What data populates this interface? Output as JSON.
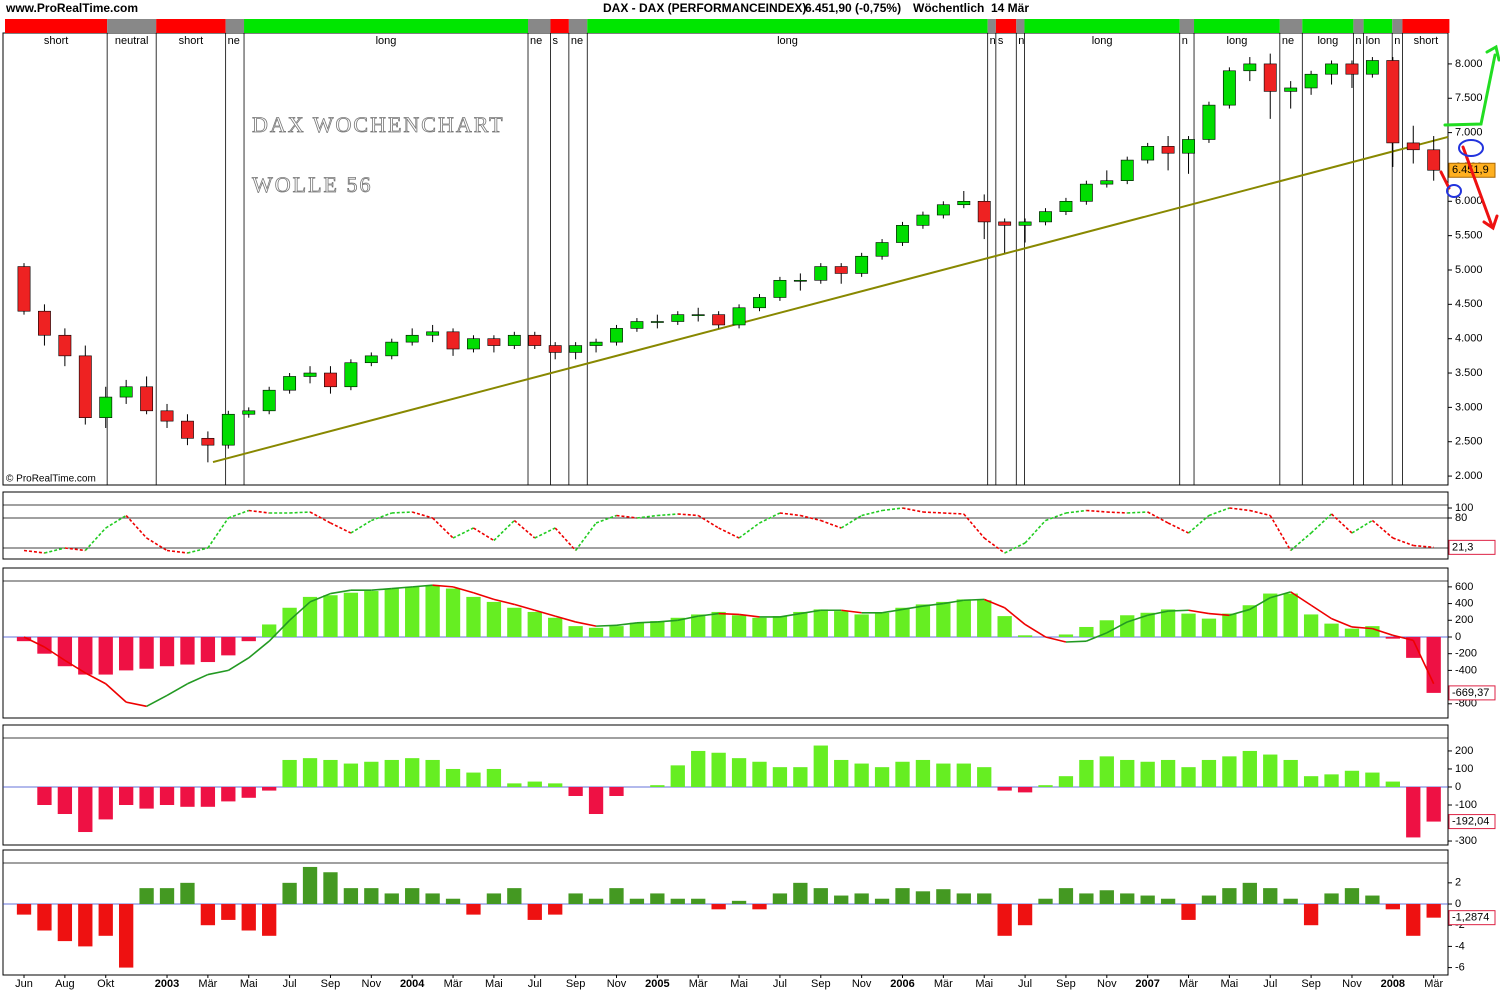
{
  "header": {
    "site": "www.ProRealTime.com",
    "title": "DAX - DAX (PERFORMANCEINDEX)",
    "price": "6.451,90 (-0,75%)",
    "period": "Wöchentlich  14 Mär",
    "copyright": "© ProRealTime.com"
  },
  "chart_data": [
    {
      "type": "candlestick",
      "annotations": [
        "DAX WOCHENCHART",
        "WOLLE 56"
      ],
      "categories": [
        "Jun",
        null,
        "Aug",
        null,
        "Okt",
        null,
        null,
        "2003",
        null,
        "Mär",
        null,
        "Mai",
        null,
        "Jul",
        null,
        "Sep",
        null,
        "Nov",
        null,
        "2004",
        null,
        "Mär",
        null,
        "Mai",
        null,
        "Jul",
        null,
        "Sep",
        null,
        "Nov",
        null,
        "2005",
        null,
        "Mär",
        null,
        "Mai",
        null,
        "Jul",
        null,
        "Sep",
        null,
        "Nov",
        null,
        "2006",
        null,
        "Mär",
        null,
        "Mai",
        null,
        "Jul",
        null,
        "Sep",
        null,
        "Nov",
        null,
        "2007",
        null,
        "Mär",
        null,
        "Mai",
        null,
        "Jul",
        null,
        "Sep",
        null,
        "Nov",
        null,
        "2008",
        null,
        "Mär"
      ],
      "open": [
        5050,
        4400,
        4050,
        3750,
        2850,
        3150,
        3300,
        2950,
        2800,
        2550,
        2450,
        2900,
        2950,
        3250,
        3450,
        3500,
        3300,
        3650,
        3750,
        3950,
        4050,
        4100,
        3850,
        4000,
        3900,
        4050,
        3900,
        3800,
        3900,
        3950,
        4150,
        4250,
        4250,
        4350,
        4350,
        4200,
        4450,
        4600,
        4850,
        4850,
        5050,
        4950,
        5200,
        5400,
        5650,
        5800,
        5950,
        6000,
        5700,
        5650,
        5700,
        5850,
        6000,
        6250,
        6300,
        6600,
        6800,
        6700,
        6900,
        7400,
        7900,
        8000,
        7600,
        7650,
        7850,
        8000,
        7850,
        8050,
        6850,
        6750
      ],
      "high": [
        5100,
        4500,
        4150,
        3900,
        3300,
        3400,
        3450,
        3050,
        2900,
        2650,
        2950,
        3000,
        3300,
        3500,
        3600,
        3600,
        3700,
        3800,
        4000,
        4150,
        4200,
        4150,
        4050,
        4050,
        4100,
        4100,
        3950,
        3950,
        4000,
        4200,
        4300,
        4350,
        4400,
        4450,
        4400,
        4500,
        4650,
        4900,
        4950,
        5100,
        5100,
        5250,
        5450,
        5700,
        5850,
        6000,
        6150,
        6100,
        5750,
        5750,
        5900,
        6050,
        6300,
        6450,
        6650,
        6850,
        6950,
        6950,
        7450,
        7950,
        8100,
        8150,
        7750,
        7900,
        8050,
        8050,
        8100,
        8100,
        7100,
        6950
      ],
      "low": [
        4350,
        3900,
        3600,
        2750,
        2700,
        3050,
        2900,
        2700,
        2450,
        2200,
        2400,
        2850,
        2900,
        3200,
        3350,
        3200,
        3250,
        3600,
        3700,
        3900,
        3950,
        3750,
        3800,
        3800,
        3850,
        3850,
        3700,
        3700,
        3800,
        3900,
        4100,
        4150,
        4200,
        4250,
        4150,
        4150,
        4400,
        4550,
        4700,
        4800,
        4800,
        4900,
        5150,
        5350,
        5600,
        5750,
        5900,
        5450,
        5250,
        5400,
        5650,
        5800,
        5950,
        6200,
        6250,
        6550,
        6450,
        6400,
        6850,
        7350,
        7750,
        7200,
        7350,
        7550,
        7700,
        7650,
        7800,
        6500,
        6550,
        6300
      ],
      "close": [
        4400,
        4050,
        3750,
        2850,
        3150,
        3300,
        2950,
        2800,
        2550,
        2450,
        2900,
        2950,
        3250,
        3450,
        3500,
        3300,
        3650,
        3750,
        3950,
        4050,
        4100,
        3850,
        4000,
        3900,
        4050,
        3900,
        3800,
        3900,
        3950,
        4150,
        4250,
        4250,
        4350,
        4350,
        4200,
        4450,
        4600,
        4850,
        4850,
        5050,
        4950,
        5200,
        5400,
        5650,
        5800,
        5950,
        6000,
        5700,
        5650,
        5700,
        5850,
        6000,
        6250,
        6300,
        6600,
        6800,
        6700,
        6900,
        7400,
        7900,
        8000,
        7600,
        7650,
        7850,
        8000,
        7850,
        8050,
        6850,
        6750,
        6451.9
      ],
      "up_color": "#00dd00",
      "down_color": "#ee2222",
      "ylim": [
        1870,
        8450
      ],
      "yticks": [
        {
          "value": 2000,
          "label": "2.000"
        },
        {
          "value": 2500,
          "label": "2.500"
        },
        {
          "value": 3000,
          "label": "3.000"
        },
        {
          "value": 3500,
          "label": "3.500"
        },
        {
          "value": 4000,
          "label": "4.000"
        },
        {
          "value": 4500,
          "label": "4.500"
        },
        {
          "value": 5000,
          "label": "5.000"
        },
        {
          "value": 5500,
          "label": "5.500"
        },
        {
          "value": 6000,
          "label": "6.000"
        },
        {
          "value": 6500,
          "label": "6.500"
        },
        {
          "value": 7000,
          "label": "7.000"
        },
        {
          "value": 7500,
          "label": "7.500"
        },
        {
          "value": 8000,
          "label": "8.000"
        }
      ],
      "last_label": "6.451,9",
      "label_box_color": "#ffb020",
      "trendline": {
        "x": [
          9.25,
          69.7
        ],
        "y": [
          2204,
          6937
        ],
        "color": "#888800"
      },
      "regimes": [
        {
          "label": "short",
          "color": "#ff0000",
          "months": 5.0
        },
        {
          "label": "neutral",
          "color": "#888888",
          "months": 2.4
        },
        {
          "label": "short",
          "color": "#ff0000",
          "months": 3.4
        },
        {
          "label": "ne",
          "color": "#888888",
          "months": 0.9
        },
        {
          "label": "long",
          "color": "#00e600",
          "months": 13.9
        },
        {
          "label": "ne",
          "color": "#888888",
          "months": 1.1
        },
        {
          "label": "s",
          "color": "#ff0000",
          "months": 0.9
        },
        {
          "label": "ne",
          "color": "#888888",
          "months": 0.9
        },
        {
          "label": "long",
          "color": "#00e600",
          "months": 19.6
        },
        {
          "label": "n",
          "color": "#888888",
          "months": 0.4
        },
        {
          "label": "s",
          "color": "#ff0000",
          "months": 1.0
        },
        {
          "label": "n",
          "color": "#888888",
          "months": 0.4
        },
        {
          "label": "long",
          "color": "#00e600",
          "months": 7.6
        },
        {
          "label": "n",
          "color": "#888888",
          "months": 0.7
        },
        {
          "label": "long",
          "color": "#00e600",
          "months": 4.2
        },
        {
          "label": "ne",
          "color": "#888888",
          "months": 1.1
        },
        {
          "label": "long",
          "color": "#00e600",
          "months": 2.5
        },
        {
          "label": "n",
          "color": "#888888",
          "months": 0.5
        },
        {
          "label": "lon",
          "color": "#00e600",
          "months": 1.4
        },
        {
          "label": "n",
          "color": "#888888",
          "months": 0.5
        },
        {
          "label": "short",
          "color": "#ff0000",
          "months": 2.3
        }
      ]
    },
    {
      "type": "line",
      "values": [
        15,
        10,
        20,
        15,
        60,
        85,
        40,
        15,
        10,
        20,
        80,
        95,
        90,
        90,
        92,
        70,
        50,
        75,
        90,
        92,
        80,
        40,
        60,
        35,
        75,
        40,
        60,
        15,
        70,
        85,
        80,
        85,
        88,
        85,
        60,
        40,
        70,
        90,
        85,
        75,
        60,
        85,
        95,
        100,
        92,
        90,
        88,
        40,
        10,
        30,
        75,
        90,
        95,
        92,
        90,
        92,
        70,
        50,
        85,
        100,
        95,
        85,
        15,
        50,
        88,
        50,
        75,
        40,
        25,
        21.3
      ],
      "up_color": "#22cc22",
      "down_color": "#ee0000",
      "levels": [
        80,
        20
      ],
      "ylim": [
        -2,
        132
      ],
      "yticks": [
        100,
        80
      ],
      "last_label": "21,3",
      "label_box_color": "#ffffff"
    },
    {
      "type": "bar",
      "values": [
        -50,
        -200,
        -350,
        -450,
        -450,
        -400,
        -380,
        -350,
        -330,
        -300,
        -220,
        -50,
        150,
        350,
        480,
        500,
        530,
        550,
        580,
        600,
        620,
        580,
        480,
        420,
        350,
        300,
        230,
        130,
        110,
        130,
        170,
        190,
        230,
        270,
        300,
        260,
        230,
        250,
        300,
        330,
        310,
        270,
        290,
        350,
        390,
        420,
        450,
        440,
        250,
        20,
        0,
        30,
        120,
        200,
        260,
        290,
        330,
        280,
        220,
        280,
        380,
        520,
        520,
        270,
        160,
        100,
        130,
        -20,
        -250,
        -669.37
      ],
      "positive_color": "#66ee22",
      "negative_color": "#ee1144",
      "line": {
        "values": [
          0,
          -120,
          -280,
          -430,
          -560,
          -780,
          -830,
          -700,
          -560,
          -450,
          -400,
          -250,
          -50,
          200,
          420,
          520,
          560,
          560,
          580,
          600,
          620,
          600,
          530,
          450,
          390,
          320,
          250,
          180,
          130,
          140,
          170,
          180,
          200,
          250,
          280,
          270,
          240,
          240,
          280,
          320,
          320,
          290,
          290,
          330,
          370,
          400,
          440,
          450,
          350,
          150,
          0,
          -60,
          -50,
          50,
          180,
          260,
          310,
          320,
          280,
          260,
          330,
          470,
          540,
          380,
          220,
          120,
          100,
          20,
          -40,
          -560
        ],
        "up_color": "#229922",
        "down_color": "#ee0000"
      },
      "ylim": [
        -970,
        826
      ],
      "yticks": [
        600,
        400,
        200,
        0,
        -200,
        -400,
        -800
      ],
      "last_label": "-669,37",
      "label_box_color": "#ffffff"
    },
    {
      "type": "bar",
      "values": [
        0,
        -100,
        -150,
        -250,
        -180,
        -100,
        -120,
        -100,
        -110,
        -110,
        -80,
        -60,
        -20,
        150,
        160,
        150,
        130,
        140,
        150,
        160,
        150,
        100,
        80,
        100,
        20,
        30,
        20,
        -50,
        -150,
        -50,
        0,
        10,
        120,
        200,
        190,
        160,
        140,
        110,
        110,
        230,
        150,
        130,
        110,
        140,
        150,
        130,
        130,
        110,
        -20,
        -30,
        10,
        60,
        150,
        170,
        150,
        140,
        150,
        110,
        150,
        170,
        200,
        180,
        150,
        60,
        70,
        90,
        80,
        30,
        -280,
        -192.04
      ],
      "positive_color": "#66ee22",
      "negative_color": "#ee1144",
      "ylim": [
        -322,
        344
      ],
      "yticks": [
        200,
        100,
        0,
        -100,
        -300
      ],
      "last_label": "-192,04",
      "label_box_color": "#ffffff"
    },
    {
      "type": "bar",
      "values": [
        -1,
        -2.5,
        -3.5,
        -4,
        -3,
        -6,
        1.5,
        1.5,
        2,
        -2,
        -1.5,
        -2.5,
        -3,
        2,
        3.5,
        3,
        1.5,
        1.5,
        1,
        1.5,
        1,
        0.5,
        -1,
        1,
        1.5,
        -1.5,
        -1,
        1,
        0.5,
        1.5,
        0.5,
        1,
        0.5,
        0.5,
        -0.5,
        0.3,
        -0.5,
        1,
        2,
        1.5,
        0.8,
        1,
        0.5,
        1.5,
        1.2,
        1.4,
        1,
        1,
        -3,
        -2,
        0.5,
        1.5,
        1,
        1.3,
        1,
        0.8,
        0.5,
        -1.5,
        0.8,
        1.5,
        2,
        1.5,
        0.5,
        -2,
        1,
        1.5,
        0.8,
        -0.5,
        -3,
        -1.2874
      ],
      "positive_color": "#449922",
      "negative_color": "#ee1111",
      "ylim": [
        -6.7,
        5.1
      ],
      "yticks": [
        2,
        0,
        -2,
        -4,
        -6
      ],
      "last_label": "-1,2874",
      "label_box_color": "#ffffff"
    }
  ]
}
